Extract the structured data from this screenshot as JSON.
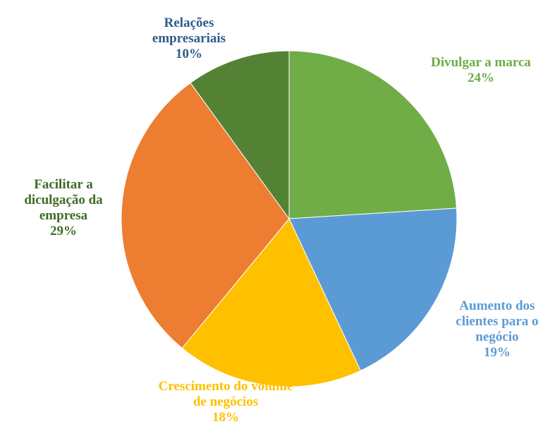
{
  "chart_data": {
    "type": "pie",
    "categories": [
      "Divulgar a marca",
      "Aumento dos clientes para o negócio",
      "Crescimento do volume de negócios",
      "Facilitar a diculgação da empresa",
      "Relações empresariais"
    ],
    "values": [
      24,
      19,
      18,
      29,
      10
    ],
    "value_labels": [
      "24%",
      "19%",
      "18%",
      "29%",
      "10%"
    ],
    "colors": [
      "#70ad47",
      "#5b9bd5",
      "#ffc000",
      "#ed7d31",
      "#548235"
    ],
    "label_colors": [
      "#70ad47",
      "#5b9bd5",
      "#ffc000",
      "#3f6b28",
      "#2f5c8a"
    ]
  }
}
